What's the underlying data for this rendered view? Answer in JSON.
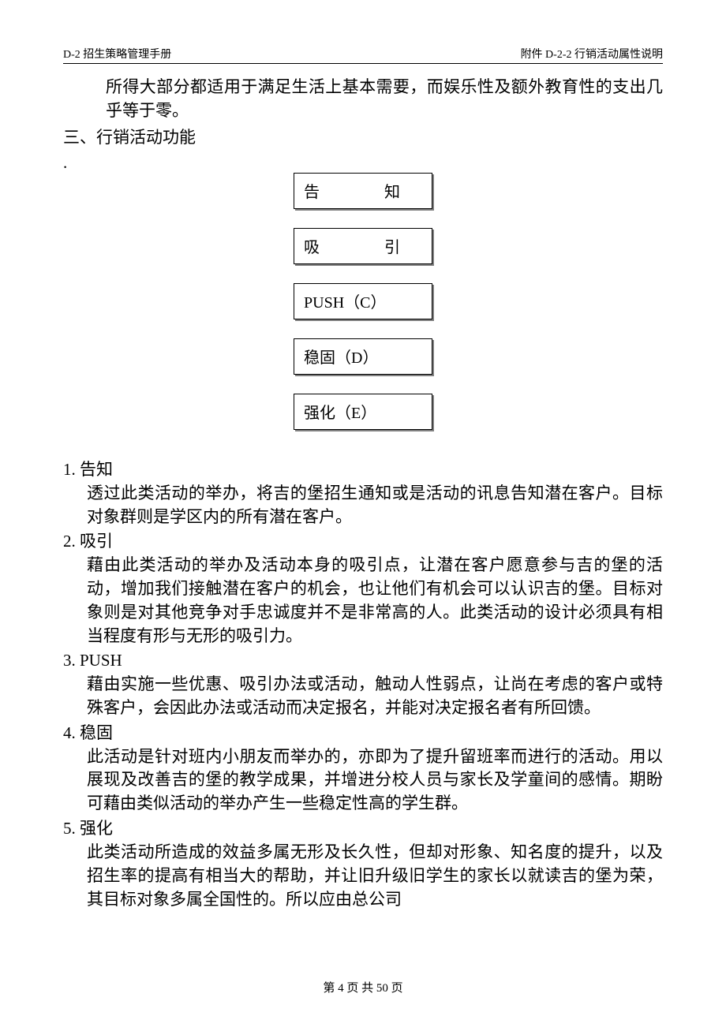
{
  "header": {
    "left": "D-2 招生策略管理手册",
    "right": "附件 D-2-2 行销活动属性说明"
  },
  "intro": "所得大部分都适用于满足生活上基本需要，而娱乐性及额外教育性的支出几乎等于零。",
  "section_heading": "三、行销活动功能",
  "boxes": {
    "b1_a": "告",
    "b1_b": "知",
    "b2_a": "吸",
    "b2_b": "引",
    "b3": "PUSH（C）",
    "b4": "稳固（D）",
    "b5": "强化（E）"
  },
  "items": [
    {
      "num": "1.",
      "title": "告知",
      "body": "透过此类活动的举办，将吉的堡招生通知或是活动的讯息告知潜在客户。目标对象群则是学区内的所有潜在客户。"
    },
    {
      "num": "2.",
      "title": "吸引",
      "body": "藉由此类活动的举办及活动本身的吸引点，让潜在客户愿意参与吉的堡的活动，增加我们接触潜在客户的机会，也让他们有机会可以认识吉的堡。目标对象则是对其他竞争对手忠诚度并不是非常高的人。此类活动的设计必须具有相当程度有形与无形的吸引力。"
    },
    {
      "num": "3.",
      "title": "PUSH",
      "body": "藉由实施一些优惠、吸引办法或活动，触动人性弱点，让尚在考虑的客户或特殊客户，会因此办法或活动而决定报名，并能对决定报名者有所回馈。"
    },
    {
      "num": "4.",
      "title": "稳固",
      "body": "此活动是针对班内小朋友而举办的，亦即为了提升留班率而进行的活动。用以展现及改善吉的堡的教学成果，并增进分校人员与家长及学童间的感情。期盼可藉由类似活动的举办产生一些稳定性高的学生群。"
    },
    {
      "num": "5.",
      "title": "强化",
      "body": "此类活动所造成的效益多属无形及长久性，但却对形象、知名度的提升，以及招生率的提高有相当大的帮助，并让旧升级旧学生的家长以就读吉的堡为荣，其目标对象多属全国性的。所以应由总公司"
    }
  ],
  "footer": "第 4 页 共 50 页"
}
